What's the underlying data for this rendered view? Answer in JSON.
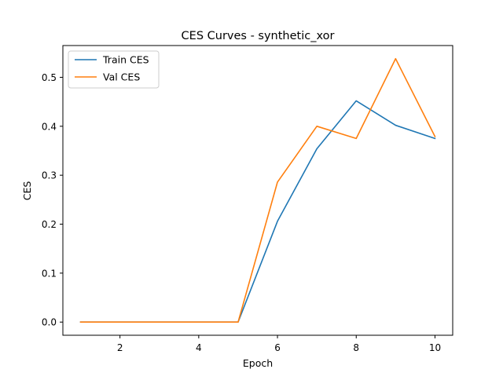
{
  "chart_data": {
    "type": "line",
    "title": "CES Curves - synthetic_xor",
    "xlabel": "Epoch",
    "ylabel": "CES",
    "x": [
      1,
      2,
      3,
      4,
      5,
      6,
      7,
      8,
      9,
      10
    ],
    "series": [
      {
        "name": "Train CES",
        "color": "#1f77b4",
        "values": [
          0.0,
          0.0,
          0.0,
          0.0,
          0.0,
          0.206,
          0.354,
          0.452,
          0.402,
          0.375
        ]
      },
      {
        "name": "Val CES",
        "color": "#ff7f0e",
        "values": [
          0.0,
          0.0,
          0.0,
          0.0,
          0.0,
          0.286,
          0.4,
          0.375,
          0.538,
          0.379
        ]
      }
    ],
    "xlim": [
      0.55,
      10.45
    ],
    "ylim": [
      -0.0269,
      0.5649
    ],
    "xticks": [
      2,
      4,
      6,
      8,
      10
    ],
    "xtick_labels": [
      "2",
      "4",
      "6",
      "8",
      "10"
    ],
    "yticks": [
      0.0,
      0.1,
      0.2,
      0.3,
      0.4,
      0.5
    ],
    "ytick_labels": [
      "0.0",
      "0.1",
      "0.2",
      "0.3",
      "0.4",
      "0.5"
    ],
    "grid": false,
    "legend_position": "upper-left"
  }
}
